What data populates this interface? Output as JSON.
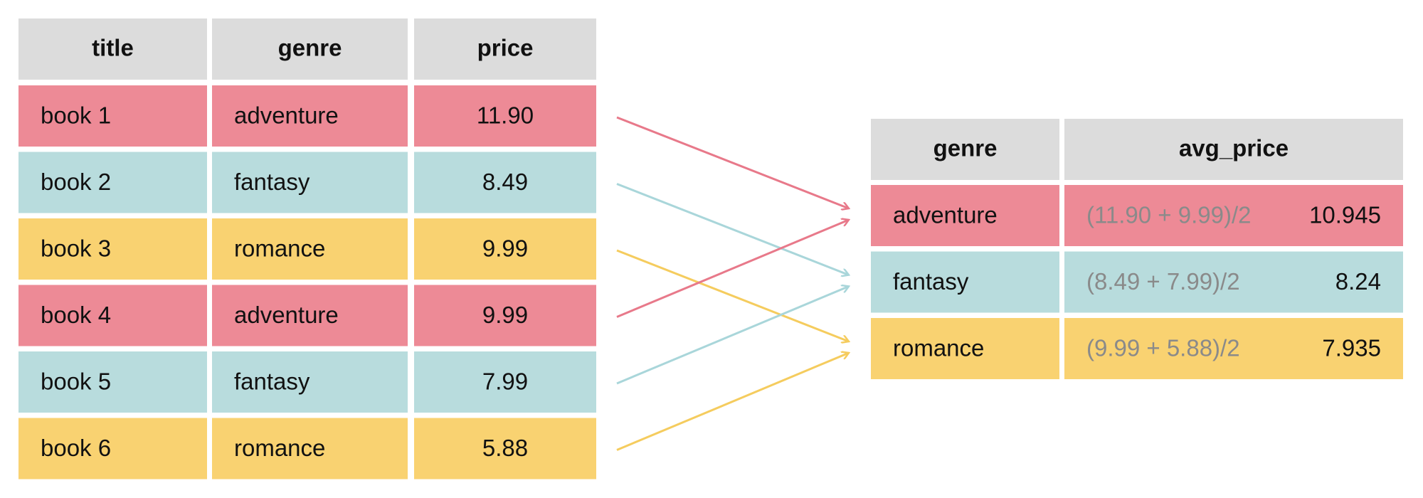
{
  "left_table": {
    "headers": [
      "title",
      "genre",
      "price"
    ],
    "rows": [
      [
        "book 1",
        "adventure",
        "11.90"
      ],
      [
        "book 2",
        "fantasy",
        "8.49"
      ],
      [
        "book 3",
        "romance",
        "9.99"
      ],
      [
        "book 4",
        "adventure",
        "9.99"
      ],
      [
        "book 5",
        "fantasy",
        "7.99"
      ],
      [
        "book 6",
        "romance",
        "5.88"
      ]
    ]
  },
  "right_table": {
    "headers": [
      "genre",
      "avg_price"
    ],
    "rows": [
      [
        "adventure",
        "(11.90 + 9.99)/2",
        "10.945"
      ],
      [
        "fantasy",
        "(8.49 + 7.99)/2",
        "8.24"
      ],
      [
        "romance",
        "(9.99 + 5.88)/2",
        "7.935"
      ]
    ]
  }
}
